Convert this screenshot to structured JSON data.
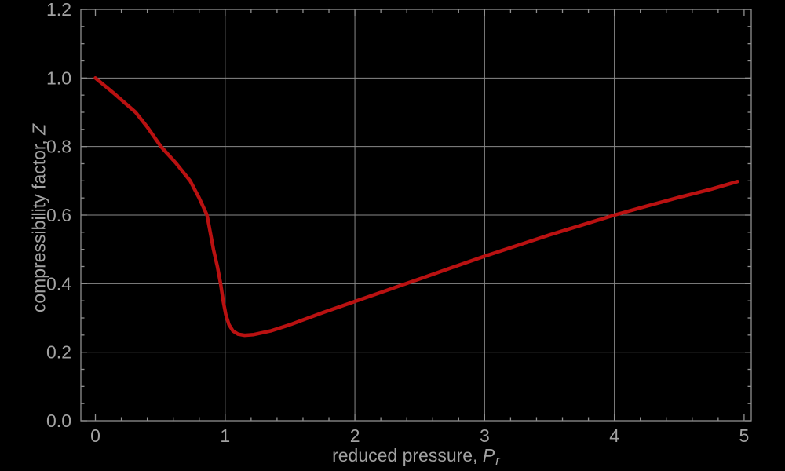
{
  "chart_data": {
    "type": "line",
    "title": "",
    "xlabel": {
      "prefix": "reduced pressure, ",
      "symbol": "P",
      "subscript": "r"
    },
    "ylabel": {
      "prefix": "compressibility factor, ",
      "symbol": "Z"
    },
    "xlim": [
      -0.112,
      5.055
    ],
    "ylim": [
      0,
      1.2
    ],
    "x_major_ticks": [
      0,
      1,
      2,
      3,
      4,
      5
    ],
    "x_tick_labels": [
      "0",
      "1",
      "2",
      "3",
      "4",
      "5"
    ],
    "x_minor_step": 0.2,
    "y_major_ticks": [
      0,
      0.2,
      0.4,
      0.6,
      0.8,
      1.0,
      1.2
    ],
    "y_tick_labels": [
      "0.0",
      "0.2",
      "0.4",
      "0.6",
      "0.8",
      "1.0",
      "1.2"
    ],
    "y_minor_step": 0.05,
    "x_gridlines": [
      1,
      2,
      3,
      4
    ],
    "y_gridlines": [
      0.2,
      0.4,
      0.6,
      0.8,
      1.0
    ],
    "grid": true,
    "legend": false,
    "frame": true,
    "series": [
      {
        "name": "compressibility-curve",
        "color": "#b91111",
        "points": [
          [
            0,
            1.0
          ],
          [
            0.15,
            0.953
          ],
          [
            0.31,
            0.9
          ],
          [
            0.4,
            0.857
          ],
          [
            0.505,
            0.8
          ],
          [
            0.62,
            0.752
          ],
          [
            0.73,
            0.7
          ],
          [
            0.8,
            0.65
          ],
          [
            0.86,
            0.6
          ],
          [
            0.885,
            0.55
          ],
          [
            0.91,
            0.5
          ],
          [
            0.94,
            0.45
          ],
          [
            0.965,
            0.4
          ],
          [
            0.985,
            0.35
          ],
          [
            1.005,
            0.31
          ],
          [
            1.03,
            0.28
          ],
          [
            1.06,
            0.262
          ],
          [
            1.1,
            0.2525
          ],
          [
            1.15,
            0.2495
          ],
          [
            1.22,
            0.2515
          ],
          [
            1.35,
            0.262
          ],
          [
            1.5,
            0.28
          ],
          [
            1.75,
            0.315
          ],
          [
            2.0,
            0.348
          ],
          [
            2.25,
            0.381
          ],
          [
            2.5,
            0.414
          ],
          [
            2.75,
            0.447
          ],
          [
            3.0,
            0.48
          ],
          [
            3.25,
            0.511
          ],
          [
            3.5,
            0.542
          ],
          [
            3.75,
            0.571
          ],
          [
            4.0,
            0.6
          ],
          [
            4.25,
            0.626
          ],
          [
            4.5,
            0.652
          ],
          [
            4.75,
            0.676
          ],
          [
            4.95,
            0.698
          ]
        ]
      }
    ],
    "colors": {
      "background": "#000000",
      "frame": "#8f8f8f",
      "grid": "#8a8a8a",
      "text": "#a2a2a2"
    }
  }
}
